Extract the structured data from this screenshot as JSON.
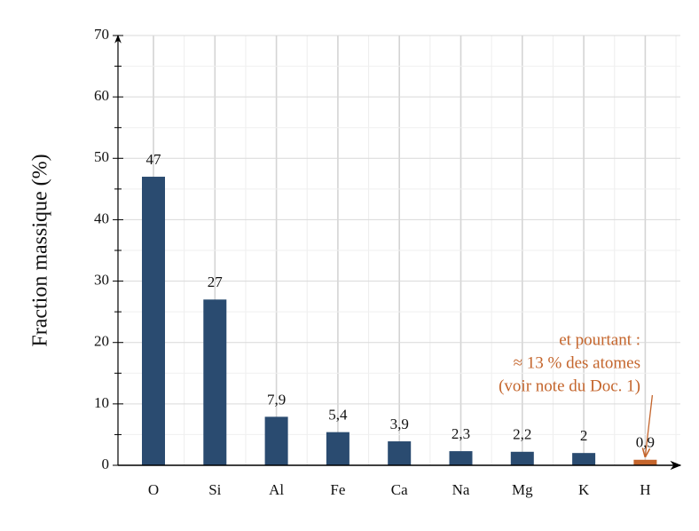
{
  "chart_data": {
    "type": "bar",
    "y_label": "Fraction massique (%)",
    "categories": [
      "O",
      "Si",
      "Al",
      "Fe",
      "Ca",
      "Na",
      "Mg",
      "K",
      "H"
    ],
    "values": [
      47,
      27,
      7.9,
      5.4,
      3.9,
      2.3,
      2.2,
      2,
      0.9
    ],
    "value_labels": [
      "47",
      "27",
      "7,9",
      "5,4",
      "3,9",
      "2,3",
      "2,2",
      "2",
      "0,9"
    ],
    "colors": [
      "#2a4b70",
      "#2a4b70",
      "#2a4b70",
      "#2a4b70",
      "#2a4b70",
      "#2a4b70",
      "#2a4b70",
      "#2a4b70",
      "#c4652c"
    ],
    "ylim": [
      0,
      70
    ],
    "yticks": [
      0,
      10,
      20,
      30,
      40,
      50,
      60,
      70
    ],
    "minor_yticks": [
      5,
      15,
      25,
      35,
      45,
      55,
      65
    ],
    "grid": true,
    "annotation": [
      "et pourtant :",
      "≈ 13 % des atomes",
      "(voir note du Doc. 1)"
    ],
    "annotation_color": "#c4652c"
  }
}
